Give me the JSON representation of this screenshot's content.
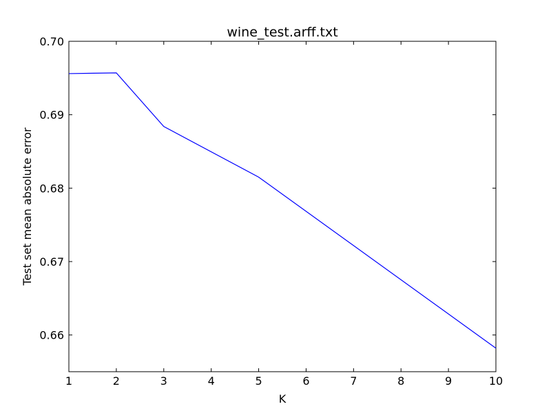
{
  "chart_data": {
    "type": "line",
    "title": "wine_test.arff.txt",
    "xlabel": "K",
    "ylabel": "Test set mean absolute error",
    "xlim": [
      1,
      10
    ],
    "ylim": [
      0.655,
      0.7
    ],
    "x_ticks": [
      "1",
      "2",
      "3",
      "4",
      "5",
      "6",
      "7",
      "8",
      "9",
      "10"
    ],
    "y_ticks": [
      "0.66",
      "0.67",
      "0.68",
      "0.69",
      "0.70"
    ],
    "grid": false,
    "legend": "none",
    "series": [
      {
        "color": "#0000ff",
        "x": [
          1,
          2,
          3,
          5,
          10
        ],
        "y": [
          0.6956,
          0.6957,
          0.6884,
          0.6815,
          0.6582
        ]
      }
    ]
  }
}
